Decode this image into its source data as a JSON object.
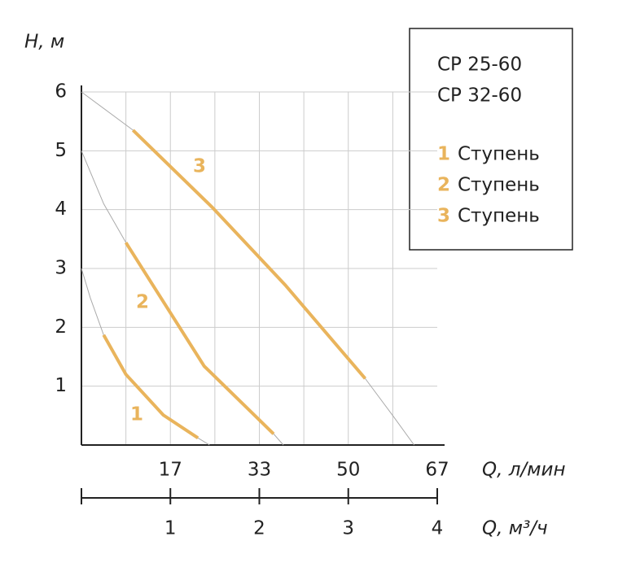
{
  "chart_data": {
    "type": "line",
    "y_label": "H, м",
    "x_label": "Q, м³/ч",
    "x2_label": "Q, л/мин",
    "models": [
      "CP 25-60",
      "CP 32-60"
    ],
    "legend_suffix": "Ступень",
    "xlim": [
      0,
      4
    ],
    "xticks": [
      1,
      2,
      3,
      4
    ],
    "xgrid": [
      0.5,
      1,
      1.5,
      2,
      2.5,
      3,
      3.5
    ],
    "x2lim": [
      0,
      66.67
    ],
    "x2ticks": [
      {
        "value": 16.67,
        "label": "17"
      },
      {
        "value": 33.33,
        "label": "33"
      },
      {
        "value": 50,
        "label": "50"
      },
      {
        "value": 66.67,
        "label": "67"
      }
    ],
    "ylim": [
      0,
      6
    ],
    "yticks": [
      1,
      2,
      3,
      4,
      5,
      6
    ],
    "grid": true,
    "series": [
      {
        "color": "#aaaaaa",
        "x": [
          0,
          0.1,
          0.25,
          0.5,
          0.92,
          1.31,
          1.44
        ],
        "values": [
          3,
          2.5,
          1.87,
          1.2,
          0.51,
          0.12,
          0
        ]
      },
      {
        "color": "#aaaaaa",
        "x": [
          0,
          0.25,
          0.5,
          1.38,
          2.16,
          2.27
        ],
        "values": [
          5,
          4.1,
          3.44,
          1.34,
          0.19,
          0
        ]
      },
      {
        "color": "#aaaaaa",
        "x": [
          0,
          0.58,
          1.47,
          2.29,
          3.19,
          3.5,
          3.74
        ],
        "values": [
          6,
          5.35,
          4.04,
          2.72,
          1.13,
          0.5,
          0
        ]
      },
      {
        "name": "1",
        "color": "#e9b45c",
        "x": [
          0.25,
          0.5,
          0.92,
          1.31
        ],
        "values": [
          1.87,
          1.2,
          0.51,
          0.12
        ]
      },
      {
        "name": "2",
        "color": "#e9b45c",
        "x": [
          0.5,
          1.38,
          2.16
        ],
        "values": [
          3.44,
          1.34,
          0.19
        ]
      },
      {
        "name": "3",
        "color": "#e9b45c",
        "x": [
          0.58,
          1.47,
          2.29,
          3.19
        ],
        "values": [
          5.35,
          4.04,
          2.72,
          1.13
        ]
      }
    ]
  }
}
